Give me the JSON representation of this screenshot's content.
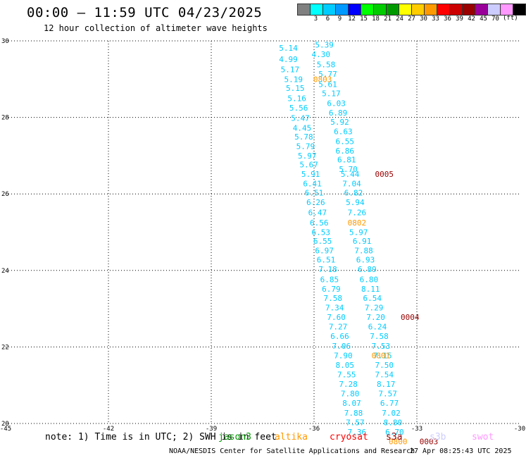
{
  "header": {
    "title": "00:00 — 11:59 UTC 04/23/2025",
    "subtitle": "12 hour collection of altimeter wave heights"
  },
  "legend": {
    "unit": "(ft)",
    "items": [
      {
        "label": "",
        "color": "#808080"
      },
      {
        "label": "3",
        "color": "#00ffff"
      },
      {
        "label": "6",
        "color": "#00ccff"
      },
      {
        "label": "9",
        "color": "#0099ff"
      },
      {
        "label": "12",
        "color": "#0000ff"
      },
      {
        "label": "15",
        "color": "#00ff00"
      },
      {
        "label": "18",
        "color": "#00cc00"
      },
      {
        "label": "21",
        "color": "#009900"
      },
      {
        "label": "24",
        "color": "#ffff00"
      },
      {
        "label": "27",
        "color": "#ffcc00"
      },
      {
        "label": "30",
        "color": "#ff9900"
      },
      {
        "label": "33",
        "color": "#ff0000"
      },
      {
        "label": "36",
        "color": "#cc0000"
      },
      {
        "label": "39",
        "color": "#990000"
      },
      {
        "label": "42",
        "color": "#990099"
      },
      {
        "label": "45",
        "color": "#ccccff"
      },
      {
        "label": "70",
        "color": "#ff99ff"
      },
      {
        "label": "",
        "color": "#000000"
      }
    ]
  },
  "footer": {
    "note": "note: 1) Time is in UTC; 2) SWH is in feet",
    "satellites": [
      {
        "name": "jason3",
        "color": "#009900"
      },
      {
        "name": "altika",
        "color": "#ff9900"
      },
      {
        "name": "cryosat",
        "color": "#ff0000"
      },
      {
        "name": "s3a",
        "color": "#990000"
      },
      {
        "name": "s3b",
        "color": "#ccccff"
      },
      {
        "name": "swot",
        "color": "#ff99ff"
      }
    ],
    "credit": "NOAA/NESDIS Center for Satellite Applications and Research",
    "timestamp": "27 Apr 08:25:43 UTC 2025"
  },
  "chart_data": {
    "type": "scatter",
    "xlim": [
      -45,
      -30
    ],
    "ylim": [
      20,
      30
    ],
    "x_ticks": [
      "-45",
      "-42",
      "-39",
      "-36",
      "-33",
      "-30"
    ],
    "y_ticks": [
      "20",
      "22",
      "24",
      "26",
      "28",
      "30"
    ],
    "grid": true,
    "points": [
      {
        "lon": -35.7,
        "lat": 29.9,
        "label": "5.39",
        "color": "#00ccff"
      },
      {
        "lon": -36.75,
        "lat": 29.82,
        "label": "5.14",
        "color": "#00ccff"
      },
      {
        "lon": -35.8,
        "lat": 29.65,
        "label": "4.30",
        "color": "#00ccff"
      },
      {
        "lon": -36.75,
        "lat": 29.52,
        "label": "4.99",
        "color": "#00ccff"
      },
      {
        "lon": -35.65,
        "lat": 29.38,
        "label": "5.58",
        "color": "#00ccff"
      },
      {
        "lon": -36.7,
        "lat": 29.25,
        "label": "5.17",
        "color": "#00ccff"
      },
      {
        "lon": -35.6,
        "lat": 29.13,
        "label": "5.77",
        "color": "#00ccff"
      },
      {
        "lon": -36.6,
        "lat": 29.0,
        "label": "5.19",
        "color": "#00ccff"
      },
      {
        "lon": -35.75,
        "lat": 29.0,
        "label": "0803",
        "color": "#ff9900"
      },
      {
        "lon": -35.6,
        "lat": 28.87,
        "label": "5.61",
        "color": "#00ccff"
      },
      {
        "lon": -36.55,
        "lat": 28.77,
        "label": "5.15",
        "color": "#00ccff"
      },
      {
        "lon": -35.5,
        "lat": 28.63,
        "label": "5.17",
        "color": "#00ccff"
      },
      {
        "lon": -36.5,
        "lat": 28.5,
        "label": "5.16",
        "color": "#00ccff"
      },
      {
        "lon": -35.35,
        "lat": 28.37,
        "label": "6.03",
        "color": "#00ccff"
      },
      {
        "lon": -36.45,
        "lat": 28.25,
        "label": "5.56",
        "color": "#00ccff"
      },
      {
        "lon": -35.3,
        "lat": 28.12,
        "label": "6.89",
        "color": "#00ccff"
      },
      {
        "lon": -36.4,
        "lat": 27.98,
        "label": "5.47",
        "color": "#00ccff"
      },
      {
        "lon": -35.25,
        "lat": 27.88,
        "label": "5.92",
        "color": "#00ccff"
      },
      {
        "lon": -36.35,
        "lat": 27.73,
        "label": "4.45",
        "color": "#00ccff"
      },
      {
        "lon": -35.15,
        "lat": 27.63,
        "label": "6.63",
        "color": "#00ccff"
      },
      {
        "lon": -36.3,
        "lat": 27.5,
        "label": "5.78",
        "color": "#00ccff"
      },
      {
        "lon": -35.1,
        "lat": 27.38,
        "label": "6.55",
        "color": "#00ccff"
      },
      {
        "lon": -36.25,
        "lat": 27.25,
        "label": "5.79",
        "color": "#00ccff"
      },
      {
        "lon": -35.1,
        "lat": 27.13,
        "label": "6.86",
        "color": "#00ccff"
      },
      {
        "lon": -36.2,
        "lat": 27.0,
        "label": "5.97",
        "color": "#00ccff"
      },
      {
        "lon": -35.05,
        "lat": 26.9,
        "label": "6.81",
        "color": "#00ccff"
      },
      {
        "lon": -36.15,
        "lat": 26.77,
        "label": "5.67",
        "color": "#00ccff"
      },
      {
        "lon": -35.0,
        "lat": 26.65,
        "label": "5.70",
        "color": "#00ccff"
      },
      {
        "lon": -36.1,
        "lat": 26.52,
        "label": "5.91",
        "color": "#00ccff"
      },
      {
        "lon": -34.95,
        "lat": 26.52,
        "label": "5.44",
        "color": "#00ccff"
      },
      {
        "lon": -33.95,
        "lat": 26.52,
        "label": "0005",
        "color": "#990000"
      },
      {
        "lon": -36.05,
        "lat": 26.27,
        "label": "6.41",
        "color": "#00ccff"
      },
      {
        "lon": -34.9,
        "lat": 26.27,
        "label": "7.04",
        "color": "#00ccff"
      },
      {
        "lon": -36.0,
        "lat": 26.03,
        "label": "6.51",
        "color": "#00ccff"
      },
      {
        "lon": -34.85,
        "lat": 26.03,
        "label": "6.82",
        "color": "#00ccff"
      },
      {
        "lon": -35.95,
        "lat": 25.78,
        "label": "6.26",
        "color": "#00ccff"
      },
      {
        "lon": -34.8,
        "lat": 25.78,
        "label": "5.94",
        "color": "#00ccff"
      },
      {
        "lon": -35.9,
        "lat": 25.52,
        "label": "6.47",
        "color": "#00ccff"
      },
      {
        "lon": -34.75,
        "lat": 25.52,
        "label": "7.26",
        "color": "#00ccff"
      },
      {
        "lon": -35.85,
        "lat": 25.25,
        "label": "6.56",
        "color": "#00ccff"
      },
      {
        "lon": -34.75,
        "lat": 25.25,
        "label": "0802",
        "color": "#ff9900"
      },
      {
        "lon": -34.7,
        "lat": 25.0,
        "label": "5.97",
        "color": "#00ccff"
      },
      {
        "lon": -35.8,
        "lat": 25.0,
        "label": "6.53",
        "color": "#00ccff"
      },
      {
        "lon": -35.75,
        "lat": 24.77,
        "label": "6.55",
        "color": "#00ccff"
      },
      {
        "lon": -34.6,
        "lat": 24.77,
        "label": "6.91",
        "color": "#00ccff"
      },
      {
        "lon": -35.7,
        "lat": 24.52,
        "label": "6.97",
        "color": "#00ccff"
      },
      {
        "lon": -34.55,
        "lat": 24.52,
        "label": "7.88",
        "color": "#00ccff"
      },
      {
        "lon": -35.65,
        "lat": 24.28,
        "label": "6.51",
        "color": "#00ccff"
      },
      {
        "lon": -34.5,
        "lat": 24.28,
        "label": "6.93",
        "color": "#00ccff"
      },
      {
        "lon": -35.6,
        "lat": 24.03,
        "label": "7.18",
        "color": "#00ccff"
      },
      {
        "lon": -34.45,
        "lat": 24.03,
        "label": "6.89",
        "color": "#00ccff"
      },
      {
        "lon": -35.55,
        "lat": 23.77,
        "label": "6.85",
        "color": "#00ccff"
      },
      {
        "lon": -34.4,
        "lat": 23.77,
        "label": "6.80",
        "color": "#00ccff"
      },
      {
        "lon": -35.5,
        "lat": 23.52,
        "label": "6.79",
        "color": "#00ccff"
      },
      {
        "lon": -34.35,
        "lat": 23.52,
        "label": "8.11",
        "color": "#00ccff"
      },
      {
        "lon": -35.45,
        "lat": 23.28,
        "label": "7.58",
        "color": "#00ccff"
      },
      {
        "lon": -34.3,
        "lat": 23.28,
        "label": "6.54",
        "color": "#00ccff"
      },
      {
        "lon": -35.4,
        "lat": 23.03,
        "label": "7.34",
        "color": "#00ccff"
      },
      {
        "lon": -34.25,
        "lat": 23.03,
        "label": "7.29",
        "color": "#00ccff"
      },
      {
        "lon": -35.35,
        "lat": 22.78,
        "label": "7.60",
        "color": "#00ccff"
      },
      {
        "lon": -34.2,
        "lat": 22.78,
        "label": "7.20",
        "color": "#00ccff"
      },
      {
        "lon": -33.2,
        "lat": 22.78,
        "label": "0004",
        "color": "#990000"
      },
      {
        "lon": -35.3,
        "lat": 22.53,
        "label": "7.27",
        "color": "#00ccff"
      },
      {
        "lon": -34.15,
        "lat": 22.53,
        "label": "6.24",
        "color": "#00ccff"
      },
      {
        "lon": -35.25,
        "lat": 22.28,
        "label": "6.66",
        "color": "#00ccff"
      },
      {
        "lon": -34.1,
        "lat": 22.28,
        "label": "7.58",
        "color": "#00ccff"
      },
      {
        "lon": -35.2,
        "lat": 22.03,
        "label": "7.06",
        "color": "#00ccff"
      },
      {
        "lon": -34.05,
        "lat": 22.03,
        "label": "7.53",
        "color": "#00ccff"
      },
      {
        "lon": -35.15,
        "lat": 21.78,
        "label": "7.90",
        "color": "#00ccff"
      },
      {
        "lon": -34.0,
        "lat": 21.78,
        "label": "7.15",
        "color": "#00ccff"
      },
      {
        "lon": -34.05,
        "lat": 21.78,
        "label": "0801",
        "color": "#ff9900"
      },
      {
        "lon": -33.95,
        "lat": 21.53,
        "label": "7.50",
        "color": "#00ccff"
      },
      {
        "lon": -35.1,
        "lat": 21.53,
        "label": "8.05",
        "color": "#00ccff"
      },
      {
        "lon": -33.95,
        "lat": 21.28,
        "label": "7.54",
        "color": "#00ccff"
      },
      {
        "lon": -35.05,
        "lat": 21.28,
        "label": "7.55",
        "color": "#00ccff"
      },
      {
        "lon": -33.9,
        "lat": 21.03,
        "label": "8.17",
        "color": "#00ccff"
      },
      {
        "lon": -35.0,
        "lat": 21.03,
        "label": "7.28",
        "color": "#00ccff"
      },
      {
        "lon": -33.85,
        "lat": 20.78,
        "label": "7.57",
        "color": "#00ccff"
      },
      {
        "lon": -34.95,
        "lat": 20.78,
        "label": "7.80",
        "color": "#00ccff"
      },
      {
        "lon": -33.8,
        "lat": 20.53,
        "label": "6.77",
        "color": "#00ccff"
      },
      {
        "lon": -34.9,
        "lat": 20.53,
        "label": "8.07",
        "color": "#00ccff"
      },
      {
        "lon": -33.75,
        "lat": 20.28,
        "label": "7.02",
        "color": "#00ccff"
      },
      {
        "lon": -34.85,
        "lat": 20.28,
        "label": "7.88",
        "color": "#00ccff"
      },
      {
        "lon": -33.7,
        "lat": 20.03,
        "label": "8.80",
        "color": "#00ccff"
      },
      {
        "lon": -34.8,
        "lat": 20.03,
        "label": "7.57",
        "color": "#00ccff"
      },
      {
        "lon": -33.65,
        "lat": 19.78,
        "label": "6.70",
        "color": "#00ccff"
      },
      {
        "lon": -34.75,
        "lat": 19.78,
        "label": "7.36",
        "color": "#00ccff"
      },
      {
        "lon": -33.55,
        "lat": 19.53,
        "label": "0800",
        "color": "#ff9900"
      },
      {
        "lon": -32.65,
        "lat": 19.53,
        "label": "0003",
        "color": "#990000"
      }
    ]
  }
}
